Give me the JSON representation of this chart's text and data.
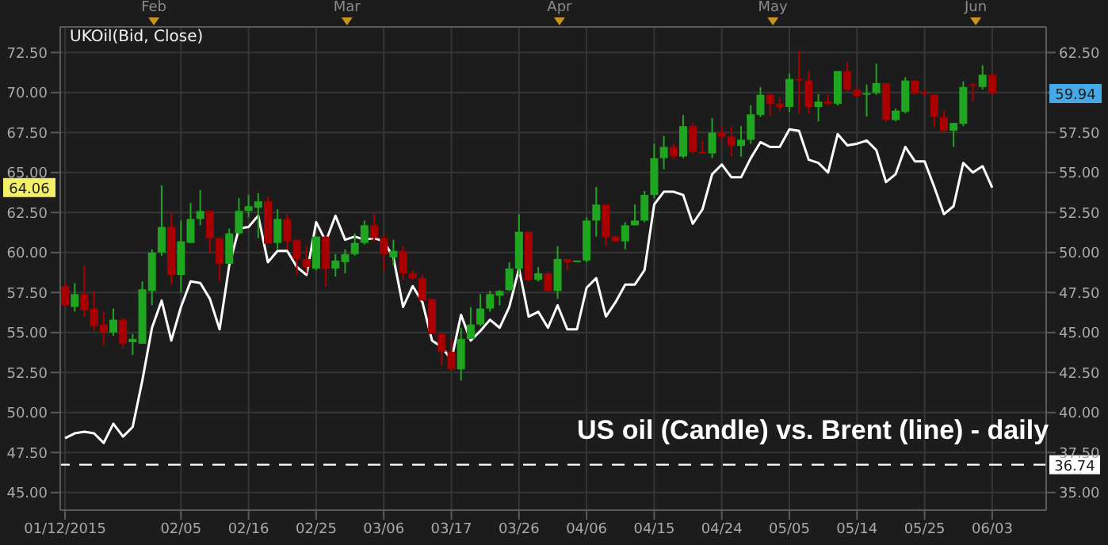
{
  "chart_data": {
    "type": "candlestick",
    "title": "US oil (Candle) vs. Brent (line) - daily",
    "subtitle": "UKOil(Bid, Close)",
    "categories": [
      "01/12/2015",
      null,
      null,
      null,
      null,
      null,
      null,
      null,
      null,
      null,
      null,
      null,
      "02/05",
      null,
      null,
      null,
      null,
      null,
      null,
      "02/16",
      null,
      null,
      null,
      null,
      null,
      null,
      "02/25",
      null,
      null,
      null,
      null,
      null,
      null,
      "03/06",
      null,
      null,
      null,
      null,
      null,
      null,
      "03/17",
      null,
      null,
      null,
      null,
      null,
      null,
      "03/26",
      null,
      null,
      null,
      null,
      null,
      null,
      "04/06",
      null,
      null,
      null,
      null,
      null,
      null,
      "04/15",
      null,
      null,
      null,
      null,
      null,
      null,
      "04/24",
      null,
      null,
      null,
      null,
      null,
      null,
      "05/05",
      null,
      null,
      null,
      null,
      null,
      null,
      "05/14",
      null,
      null,
      null,
      null,
      null,
      null,
      "05/25",
      null,
      null,
      null,
      null,
      null,
      null,
      "06/03"
    ],
    "series": [
      {
        "type": "line",
        "color": "#ffffff",
        "values": [
          48.4,
          48.7,
          48.8,
          48.7,
          48.1,
          49.3,
          48.5,
          49.1,
          52.0,
          55.3,
          57.0,
          54.5,
          56.6,
          58.2,
          58.1,
          57.1,
          55.2,
          59.2,
          61.5,
          61.6,
          62.3,
          59.4,
          60.1,
          60.1,
          59.1,
          58.6,
          61.9,
          60.7,
          62.3,
          60.8,
          61.0,
          60.8,
          60.9,
          60.7,
          59.7,
          56.6,
          57.9,
          56.9,
          54.5,
          54.1,
          53.3,
          56.1,
          54.5,
          55.1,
          55.8,
          55.3,
          56.6,
          59.0,
          56.0,
          56.3,
          55.3,
          56.7,
          55.2,
          55.2,
          57.8,
          58.4,
          56.0,
          56.9,
          58.0,
          58.0,
          58.9,
          63.0,
          63.8,
          63.8,
          63.6,
          61.8,
          62.7,
          64.9,
          65.5,
          64.7,
          64.7,
          65.9,
          66.9,
          66.6,
          66.6,
          67.7,
          67.6,
          65.8,
          65.6,
          65.0,
          67.4,
          66.7,
          66.8,
          67.0,
          66.4,
          64.4,
          64.9,
          66.6,
          65.7,
          65.7,
          64.1,
          62.4,
          62.9,
          65.6,
          65.0,
          65.4,
          64.06
        ]
      },
      {
        "axis": "y2",
        "ohlc": [
          [
            47.9,
            48.1,
            46.6,
            46.7
          ],
          [
            46.6,
            48.1,
            46.3,
            47.4
          ],
          [
            47.4,
            49.2,
            46.0,
            46.4
          ],
          [
            46.5,
            47.6,
            45.1,
            45.4
          ],
          [
            45.5,
            46.3,
            44.2,
            45.0
          ],
          [
            45.0,
            46.5,
            44.8,
            45.8
          ],
          [
            45.8,
            45.9,
            44.0,
            44.3
          ],
          [
            44.4,
            44.9,
            43.6,
            44.6
          ],
          [
            44.3,
            48.2,
            44.3,
            47.7
          ],
          [
            47.6,
            50.2,
            46.7,
            50.0
          ],
          [
            50.0,
            54.2,
            49.8,
            51.6
          ],
          [
            51.6,
            52.5,
            48.0,
            48.6
          ],
          [
            48.6,
            52.0,
            47.5,
            50.7
          ],
          [
            50.6,
            53.1,
            50.6,
            52.1
          ],
          [
            52.1,
            53.9,
            51.7,
            52.6
          ],
          [
            52.6,
            52.6,
            50.0,
            50.9
          ],
          [
            50.9,
            50.9,
            48.2,
            49.3
          ],
          [
            49.3,
            51.5,
            49.3,
            51.2
          ],
          [
            51.2,
            53.4,
            51.1,
            52.6
          ],
          [
            52.6,
            53.6,
            52.2,
            52.9
          ],
          [
            52.8,
            53.7,
            50.9,
            53.2
          ],
          [
            53.2,
            53.5,
            50.55,
            50.55
          ],
          [
            50.6,
            52.7,
            50.2,
            52.1
          ],
          [
            52.1,
            52.4,
            50.2,
            50.7
          ],
          [
            50.8,
            50.8,
            48.6,
            49.6
          ],
          [
            49.6,
            50.4,
            48.7,
            49.1
          ],
          [
            49.0,
            51.0,
            48.9,
            51.0
          ],
          [
            51.0,
            51.0,
            47.9,
            49.0
          ],
          [
            49.0,
            49.9,
            48.5,
            49.5
          ],
          [
            49.4,
            50.2,
            48.7,
            49.9
          ],
          [
            49.9,
            51.2,
            49.8,
            50.6
          ],
          [
            50.6,
            52.0,
            50.5,
            51.7
          ],
          [
            51.7,
            52.4,
            50.7,
            50.9
          ],
          [
            50.9,
            51.2,
            48.9,
            49.9
          ],
          [
            49.7,
            50.8,
            49.2,
            50.1
          ],
          [
            50.1,
            50.4,
            48.3,
            48.7
          ],
          [
            48.7,
            48.9,
            48.3,
            48.4
          ],
          [
            48.4,
            48.6,
            47.0,
            47.0
          ],
          [
            47.1,
            47.1,
            44.9,
            44.9
          ],
          [
            44.9,
            45.0,
            42.96,
            43.8
          ],
          [
            43.8,
            44.6,
            42.7,
            42.7
          ],
          [
            42.7,
            45.3,
            42.0,
            44.6
          ],
          [
            44.6,
            46.6,
            44.6,
            45.5
          ],
          [
            45.5,
            47.4,
            45.4,
            46.5
          ],
          [
            46.5,
            47.6,
            46.3,
            47.4
          ],
          [
            47.3,
            47.65,
            46.7,
            47.6
          ],
          [
            47.65,
            49.4,
            47.6,
            49.0
          ],
          [
            49.0,
            52.4,
            48.6,
            51.3
          ],
          [
            51.3,
            51.3,
            48.2,
            48.3
          ],
          [
            48.3,
            49.1,
            48.2,
            48.7
          ],
          [
            48.7,
            48.8,
            47.6,
            47.6
          ],
          [
            47.6,
            50.4,
            47.1,
            49.6
          ],
          [
            49.6,
            49.6,
            48.9,
            49.4
          ],
          [
            49.45,
            49.5,
            49.45,
            49.5
          ],
          [
            49.5,
            52.2,
            49.4,
            52.0
          ],
          [
            52.0,
            54.1,
            51.0,
            53.0
          ],
          [
            53.0,
            53.0,
            50.4,
            50.95
          ],
          [
            51.0,
            51.05,
            50.7,
            50.7
          ],
          [
            50.7,
            51.9,
            50.2,
            51.7
          ],
          [
            51.7,
            53.0,
            51.7,
            52.0
          ],
          [
            52.0,
            53.85,
            51.9,
            53.6
          ],
          [
            53.6,
            56.8,
            53.4,
            55.9
          ],
          [
            55.9,
            57.3,
            55.2,
            56.6
          ],
          [
            56.6,
            56.8,
            55.8,
            56.0
          ],
          [
            56.0,
            58.6,
            55.9,
            57.9
          ],
          [
            57.9,
            58.1,
            56.2,
            56.3
          ],
          [
            56.3,
            57.0,
            56.2,
            56.2
          ],
          [
            56.2,
            58.4,
            55.9,
            57.5
          ],
          [
            57.5,
            57.9,
            57.0,
            57.25
          ],
          [
            57.25,
            57.9,
            56.0,
            56.66
          ],
          [
            56.66,
            57.9,
            56.0,
            57.05
          ],
          [
            57.05,
            59.2,
            56.8,
            58.64
          ],
          [
            58.6,
            60.35,
            58.47,
            59.86
          ],
          [
            59.86,
            60.0,
            58.5,
            59.3
          ],
          [
            59.3,
            59.7,
            58.87,
            59.1
          ],
          [
            59.1,
            61.2,
            58.8,
            60.85
          ],
          [
            60.85,
            62.66,
            58.7,
            60.75
          ],
          [
            60.75,
            61.34,
            58.7,
            59.1
          ],
          [
            59.1,
            59.9,
            58.2,
            59.43
          ],
          [
            59.43,
            59.86,
            59.2,
            59.3
          ],
          [
            59.3,
            61.34,
            59.2,
            61.34
          ],
          [
            61.34,
            61.9,
            60.1,
            60.19
          ],
          [
            60.19,
            60.35,
            59.7,
            59.79
          ],
          [
            59.86,
            60.5,
            58.5,
            59.96
          ],
          [
            59.96,
            61.8,
            59.86,
            60.59
          ],
          [
            60.59,
            60.59,
            58.15,
            58.28
          ],
          [
            58.28,
            59.0,
            58.2,
            58.87
          ],
          [
            58.8,
            60.95,
            58.7,
            60.75
          ],
          [
            60.75,
            60.75,
            59.86,
            59.96
          ],
          [
            60.0,
            60.2,
            59.8,
            59.9
          ],
          [
            59.86,
            59.86,
            57.9,
            58.47
          ],
          [
            58.47,
            58.87,
            57.55,
            57.62
          ],
          [
            57.62,
            58.1,
            56.6,
            58.1
          ],
          [
            58.04,
            60.7,
            57.9,
            60.35
          ],
          [
            60.52,
            60.6,
            59.46,
            60.45
          ],
          [
            60.35,
            61.7,
            60.19,
            61.11
          ],
          [
            61.11,
            61.2,
            59.9,
            59.94
          ]
        ],
        "colors": [
          "#a80000",
          "#1fa51f",
          "#a80000",
          "#a80000",
          "#a80000",
          "#1fa51f",
          "#a80000",
          "#1fa51f",
          "#1fa51f",
          "#1fa51f",
          "#1fa51f",
          "#a80000",
          "#1fa51f",
          "#1fa51f",
          "#1fa51f",
          "#a80000",
          "#a80000",
          "#1fa51f",
          "#1fa51f",
          "#1fa51f",
          "#1fa51f",
          "#a80000",
          "#1fa51f",
          "#a80000",
          "#a80000",
          "#a80000",
          "#1fa51f",
          "#a80000",
          "#1fa51f",
          "#1fa51f",
          "#1fa51f",
          "#1fa51f",
          "#a80000",
          "#a80000",
          "#1fa51f",
          "#a80000",
          "#a80000",
          "#a80000",
          "#a80000",
          "#a80000",
          "#a80000",
          "#1fa51f",
          "#1fa51f",
          "#1fa51f",
          "#1fa51f",
          "#1fa51f",
          "#1fa51f",
          "#1fa51f",
          "#a80000",
          "#1fa51f",
          "#a80000",
          "#1fa51f",
          "#a80000",
          "#1fa51f",
          "#1fa51f",
          "#1fa51f",
          "#a80000",
          "#a80000",
          "#1fa51f",
          "#1fa51f",
          "#1fa51f",
          "#1fa51f",
          "#1fa51f",
          "#a80000",
          "#1fa51f",
          "#a80000",
          "#a80000",
          "#1fa51f",
          "#a80000",
          "#a80000",
          "#1fa51f",
          "#1fa51f",
          "#1fa51f",
          "#a80000",
          "#a80000",
          "#1fa51f",
          "#a80000",
          "#a80000",
          "#1fa51f",
          "#a80000",
          "#1fa51f",
          "#a80000",
          "#a80000",
          "#1fa51f",
          "#1fa51f",
          "#a80000",
          "#1fa51f",
          "#1fa51f",
          "#a80000",
          "#a80000",
          "#a80000",
          "#a80000",
          "#1fa51f",
          "#1fa51f",
          "#a80000",
          "#1fa51f",
          "#a80000"
        ]
      }
    ],
    "ylim": [
      43.9,
      74.1
    ],
    "yticks": [
      {
        "value": 45,
        "label": "45.00"
      },
      {
        "value": 47.5,
        "label": "47.50"
      },
      {
        "value": 50,
        "label": "50.00"
      },
      {
        "value": 52.5,
        "label": "52.50"
      },
      {
        "value": 55,
        "label": "55.00"
      },
      {
        "value": 57.5,
        "label": "57.50"
      },
      {
        "value": 60,
        "label": "60.00"
      },
      {
        "value": 62.5,
        "label": "62.50"
      },
      {
        "value": 65,
        "label": "65.00"
      },
      {
        "value": 67.5,
        "label": "67.50"
      },
      {
        "value": 70,
        "label": "70.00"
      },
      {
        "value": 72.5,
        "label": "72.50"
      }
    ],
    "y2lim": [
      33.9,
      64.1
    ],
    "y2ticks": [
      {
        "value": 35,
        "label": "35.00"
      },
      {
        "value": 37.5,
        "label": "37.50"
      },
      {
        "value": 40,
        "label": "40.00"
      },
      {
        "value": 42.5,
        "label": "42.50"
      },
      {
        "value": 45,
        "label": "45.00"
      },
      {
        "value": 47.5,
        "label": "47.50"
      },
      {
        "value": 50,
        "label": "50.00"
      },
      {
        "value": 52.5,
        "label": "52.50"
      },
      {
        "value": 55,
        "label": "55.00"
      },
      {
        "value": 57.5,
        "label": "57.50"
      },
      {
        "value": 60,
        "label": null
      },
      {
        "value": 62.5,
        "label": "62.50"
      }
    ],
    "ref_lines": [
      {
        "axis": "y2",
        "value": 36.74,
        "label": "36.74",
        "color": "#ffffff",
        "line_style": "dashed"
      }
    ],
    "annotations": [
      "64.06",
      "59.94",
      "Feb",
      "Mar",
      "Apr",
      "May",
      "Jun"
    ],
    "grid": true
  }
}
